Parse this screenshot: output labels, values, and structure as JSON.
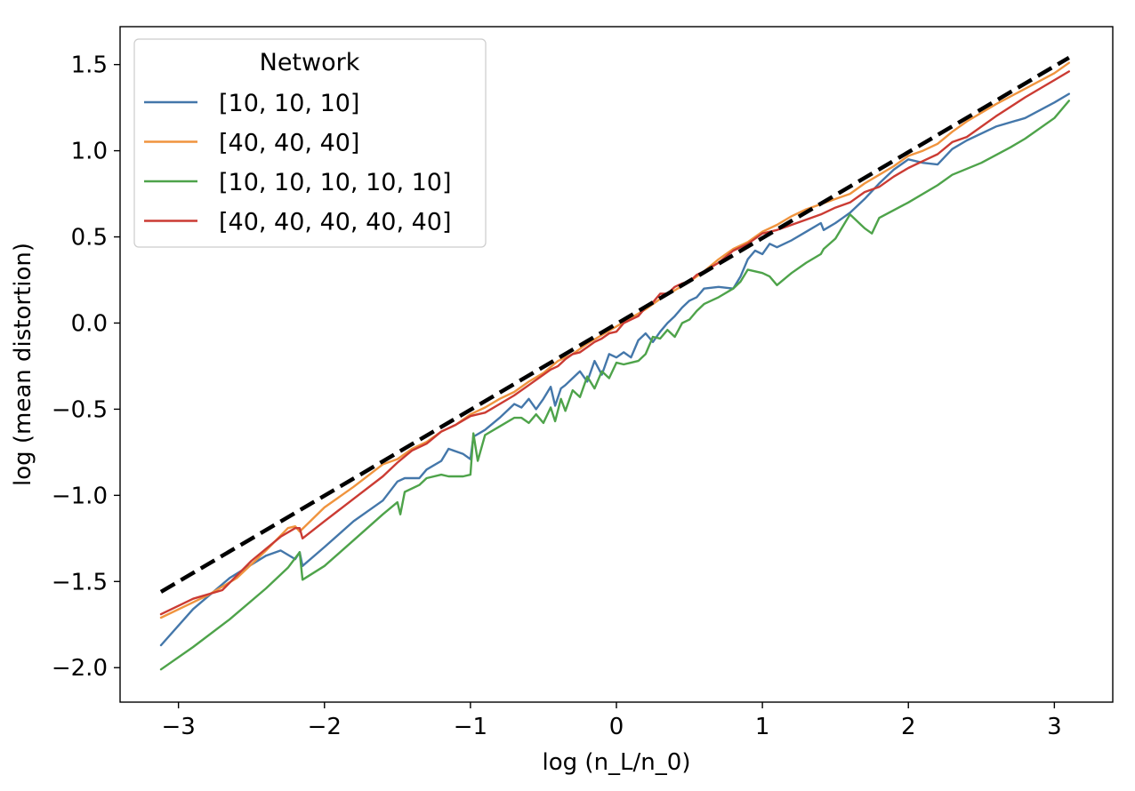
{
  "chart_data": {
    "type": "line",
    "xlabel": "log (n_L/n_0)",
    "ylabel": "log (mean distortion)",
    "xlim": [
      -3.4,
      3.4
    ],
    "ylim": [
      -2.2,
      1.72
    ],
    "xticks": [
      -3,
      -2,
      -1,
      0,
      1,
      2,
      3
    ],
    "xtick_labels": [
      "−3",
      "−2",
      "−1",
      "0",
      "1",
      "2",
      "3"
    ],
    "yticks": [
      -2.0,
      -1.5,
      -1.0,
      -0.5,
      0.0,
      0.5,
      1.0,
      1.5
    ],
    "ytick_labels": [
      "−2.0",
      "−1.5",
      "−1.0",
      "−0.5",
      "0.0",
      "0.5",
      "1.0",
      "1.5"
    ],
    "grid": false,
    "legend": {
      "title": "Network",
      "placement": "top-left"
    },
    "reference_line": {
      "style": "dashed",
      "color": "#000000",
      "x": [
        -3.12,
        3.1
      ],
      "y": [
        -1.56,
        1.54
      ]
    },
    "series": [
      {
        "name": "[10, 10, 10]",
        "color": "#4477aa",
        "x": [
          -3.12,
          -2.9,
          -2.65,
          -2.4,
          -2.3,
          -2.2,
          -2.17,
          -2.15,
          -2.0,
          -1.8,
          -1.6,
          -1.5,
          -1.45,
          -1.35,
          -1.3,
          -1.2,
          -1.15,
          -1.05,
          -1.0,
          -0.98,
          -0.9,
          -0.8,
          -0.7,
          -0.65,
          -0.6,
          -0.55,
          -0.5,
          -0.45,
          -0.42,
          -0.38,
          -0.35,
          -0.3,
          -0.25,
          -0.2,
          -0.15,
          -0.1,
          -0.05,
          0.0,
          0.05,
          0.1,
          0.15,
          0.2,
          0.25,
          0.3,
          0.35,
          0.4,
          0.45,
          0.5,
          0.55,
          0.6,
          0.7,
          0.8,
          0.85,
          0.9,
          0.95,
          1.0,
          1.05,
          1.1,
          1.15,
          1.2,
          1.3,
          1.4,
          1.42,
          1.5,
          1.55,
          1.6,
          1.7,
          1.8,
          1.9,
          2.0,
          2.1,
          2.2,
          2.3,
          2.4,
          2.6,
          2.8,
          3.0,
          3.1
        ],
        "y": [
          -1.87,
          -1.66,
          -1.48,
          -1.35,
          -1.32,
          -1.37,
          -1.33,
          -1.41,
          -1.3,
          -1.15,
          -1.03,
          -0.92,
          -0.9,
          -0.9,
          -0.85,
          -0.8,
          -0.73,
          -0.76,
          -0.79,
          -0.66,
          -0.62,
          -0.55,
          -0.47,
          -0.49,
          -0.44,
          -0.5,
          -0.44,
          -0.37,
          -0.48,
          -0.38,
          -0.36,
          -0.32,
          -0.28,
          -0.34,
          -0.22,
          -0.3,
          -0.18,
          -0.2,
          -0.17,
          -0.2,
          -0.1,
          -0.06,
          -0.11,
          -0.05,
          -0.0,
          0.04,
          0.09,
          0.13,
          0.15,
          0.2,
          0.21,
          0.2,
          0.27,
          0.37,
          0.42,
          0.4,
          0.46,
          0.44,
          0.46,
          0.48,
          0.53,
          0.58,
          0.54,
          0.58,
          0.61,
          0.64,
          0.72,
          0.81,
          0.89,
          0.95,
          0.93,
          0.92,
          1.01,
          1.06,
          1.14,
          1.19,
          1.28,
          1.33
        ]
      },
      {
        "name": "[40, 40, 40]",
        "color": "#f0943e",
        "x": [
          -3.12,
          -2.8,
          -2.6,
          -2.4,
          -2.25,
          -2.2,
          -2.17,
          -2.0,
          -1.8,
          -1.6,
          -1.5,
          -1.4,
          -1.3,
          -1.2,
          -1.1,
          -1.0,
          -0.9,
          -0.8,
          -0.7,
          -0.6,
          -0.5,
          -0.4,
          -0.3,
          -0.2,
          -0.1,
          0.0,
          0.1,
          0.2,
          0.3,
          0.4,
          0.5,
          0.6,
          0.7,
          0.8,
          0.9,
          1.0,
          1.1,
          1.2,
          1.3,
          1.4,
          1.5,
          1.6,
          1.7,
          1.8,
          1.9,
          2.0,
          2.1,
          2.2,
          2.3,
          2.4,
          2.6,
          2.8,
          3.0,
          3.1
        ],
        "y": [
          -1.71,
          -1.58,
          -1.48,
          -1.32,
          -1.19,
          -1.18,
          -1.21,
          -1.07,
          -0.95,
          -0.82,
          -0.79,
          -0.73,
          -0.69,
          -0.63,
          -0.59,
          -0.53,
          -0.49,
          -0.44,
          -0.4,
          -0.34,
          -0.29,
          -0.22,
          -0.18,
          -0.12,
          -0.07,
          -0.02,
          0.03,
          0.08,
          0.14,
          0.19,
          0.24,
          0.3,
          0.37,
          0.43,
          0.47,
          0.53,
          0.57,
          0.62,
          0.66,
          0.69,
          0.72,
          0.75,
          0.81,
          0.86,
          0.91,
          0.97,
          1.0,
          1.04,
          1.11,
          1.17,
          1.27,
          1.36,
          1.45,
          1.51
        ]
      },
      {
        "name": "[10, 10, 10, 10, 10]",
        "color": "#4ea34a",
        "x": [
          -3.12,
          -2.9,
          -2.65,
          -2.4,
          -2.25,
          -2.17,
          -2.15,
          -2.0,
          -1.8,
          -1.6,
          -1.5,
          -1.48,
          -1.45,
          -1.35,
          -1.3,
          -1.2,
          -1.15,
          -1.05,
          -1.0,
          -0.98,
          -0.95,
          -0.9,
          -0.8,
          -0.7,
          -0.65,
          -0.6,
          -0.55,
          -0.5,
          -0.45,
          -0.42,
          -0.38,
          -0.35,
          -0.3,
          -0.25,
          -0.2,
          -0.15,
          -0.1,
          -0.05,
          0.0,
          0.05,
          0.1,
          0.15,
          0.2,
          0.25,
          0.3,
          0.35,
          0.4,
          0.45,
          0.5,
          0.55,
          0.6,
          0.7,
          0.8,
          0.85,
          0.9,
          1.0,
          1.05,
          1.1,
          1.2,
          1.3,
          1.4,
          1.42,
          1.5,
          1.6,
          1.7,
          1.75,
          1.8,
          2.0,
          2.2,
          2.3,
          2.5,
          2.7,
          2.8,
          3.0,
          3.1
        ],
        "y": [
          -2.01,
          -1.88,
          -1.72,
          -1.54,
          -1.42,
          -1.33,
          -1.49,
          -1.41,
          -1.26,
          -1.11,
          -1.04,
          -1.11,
          -0.98,
          -0.94,
          -0.9,
          -0.88,
          -0.89,
          -0.89,
          -0.88,
          -0.64,
          -0.8,
          -0.65,
          -0.6,
          -0.55,
          -0.55,
          -0.58,
          -0.53,
          -0.58,
          -0.49,
          -0.57,
          -0.44,
          -0.51,
          -0.39,
          -0.43,
          -0.31,
          -0.38,
          -0.28,
          -0.32,
          -0.23,
          -0.24,
          -0.23,
          -0.22,
          -0.18,
          -0.08,
          -0.09,
          -0.04,
          -0.08,
          0.0,
          0.02,
          0.07,
          0.11,
          0.15,
          0.2,
          0.24,
          0.31,
          0.29,
          0.27,
          0.22,
          0.29,
          0.35,
          0.4,
          0.43,
          0.49,
          0.63,
          0.55,
          0.52,
          0.61,
          0.7,
          0.8,
          0.86,
          0.93,
          1.02,
          1.07,
          1.19,
          1.29
        ]
      },
      {
        "name": "[40, 40, 40, 40, 40]",
        "color": "#cb3b33",
        "x": [
          -3.12,
          -2.9,
          -2.7,
          -2.5,
          -2.3,
          -2.2,
          -2.17,
          -2.15,
          -2.0,
          -1.8,
          -1.6,
          -1.5,
          -1.4,
          -1.3,
          -1.2,
          -1.1,
          -1.0,
          -0.95,
          -0.9,
          -0.8,
          -0.7,
          -0.6,
          -0.5,
          -0.45,
          -0.4,
          -0.35,
          -0.3,
          -0.25,
          -0.2,
          -0.15,
          -0.1,
          -0.05,
          0.0,
          0.05,
          0.1,
          0.15,
          0.2,
          0.25,
          0.3,
          0.35,
          0.4,
          0.45,
          0.5,
          0.55,
          0.6,
          0.7,
          0.8,
          0.9,
          1.0,
          1.1,
          1.2,
          1.3,
          1.4,
          1.5,
          1.6,
          1.7,
          1.8,
          1.9,
          2.0,
          2.1,
          2.2,
          2.3,
          2.4,
          2.6,
          2.8,
          3.0,
          3.1
        ],
        "y": [
          -1.69,
          -1.6,
          -1.55,
          -1.38,
          -1.24,
          -1.19,
          -1.19,
          -1.25,
          -1.15,
          -1.02,
          -0.89,
          -0.81,
          -0.74,
          -0.7,
          -0.63,
          -0.59,
          -0.54,
          -0.53,
          -0.52,
          -0.47,
          -0.42,
          -0.36,
          -0.3,
          -0.27,
          -0.25,
          -0.21,
          -0.18,
          -0.17,
          -0.14,
          -0.11,
          -0.09,
          -0.06,
          -0.05,
          -0.0,
          0.02,
          0.04,
          0.09,
          0.12,
          0.17,
          0.17,
          0.21,
          0.23,
          0.24,
          0.28,
          0.3,
          0.35,
          0.42,
          0.46,
          0.52,
          0.54,
          0.57,
          0.6,
          0.63,
          0.67,
          0.7,
          0.76,
          0.79,
          0.85,
          0.9,
          0.94,
          0.98,
          1.05,
          1.08,
          1.2,
          1.31,
          1.41,
          1.46
        ]
      }
    ]
  }
}
